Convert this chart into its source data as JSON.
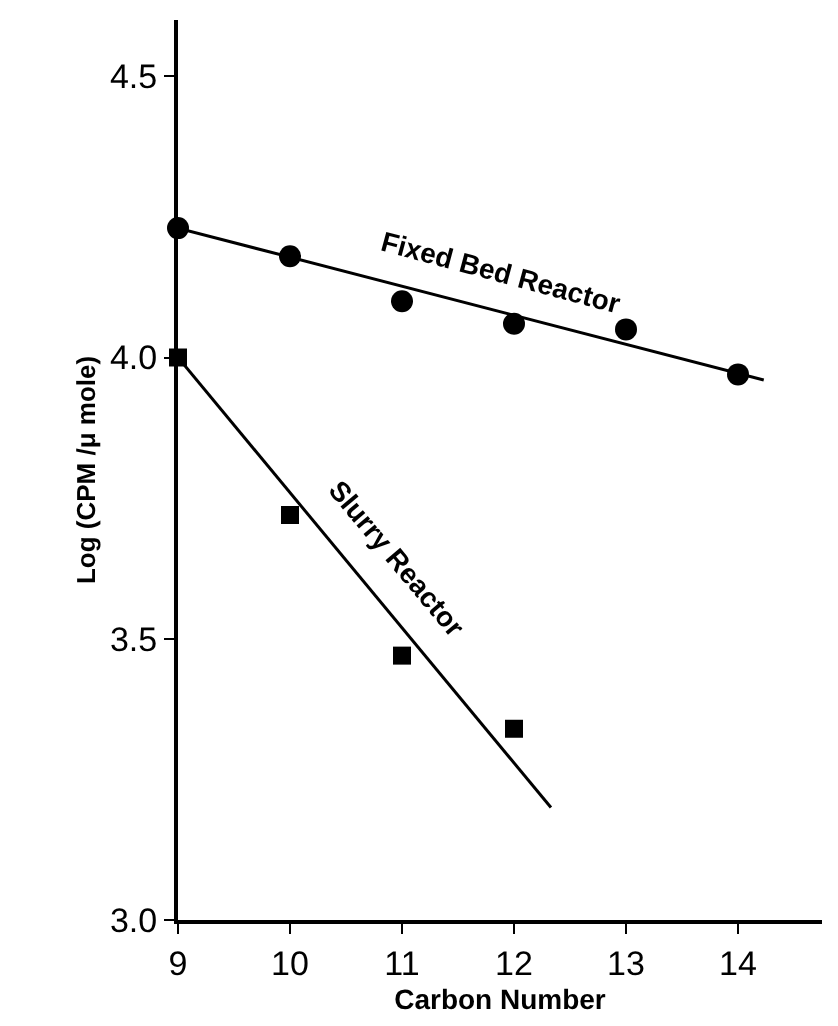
{
  "chart_data": {
    "type": "scatter",
    "xlabel": "Carbon Number",
    "ylabel": "Log (CPM /μ mole)",
    "xlim": [
      9,
      14.75
    ],
    "xticks": [
      9,
      10,
      11,
      12,
      13,
      14
    ],
    "ylim": [
      3.0,
      4.6
    ],
    "yticks": [
      {
        "value": 3,
        "label": "3.0"
      },
      3.5,
      {
        "value": 4,
        "label": "4.0"
      },
      4.5
    ],
    "legend": false,
    "series": [
      {
        "marker": "circle",
        "color": "#000000",
        "x": [
          9,
          10,
          11,
          12,
          13,
          14
        ],
        "values": [
          4.23,
          4.18,
          4.1,
          4.06,
          4.05,
          3.97
        ]
      },
      {
        "marker": "square",
        "color": "#000000",
        "x": [
          9,
          10,
          11,
          12
        ],
        "values": [
          4.0,
          3.72,
          3.47,
          3.34
        ]
      },
      {
        "type": "line",
        "name": "Fixed Bed Reactor",
        "marker": "none",
        "line_style": "solid",
        "color": "#000000",
        "x": [
          9,
          14.23
        ],
        "values": [
          4.23,
          3.96
        ]
      },
      {
        "type": "line",
        "name": "Slurry Reactor",
        "marker": "none",
        "line_style": "solid",
        "color": "#000000",
        "x": [
          9,
          12.33
        ],
        "values": [
          4.0,
          3.2
        ]
      }
    ]
  }
}
